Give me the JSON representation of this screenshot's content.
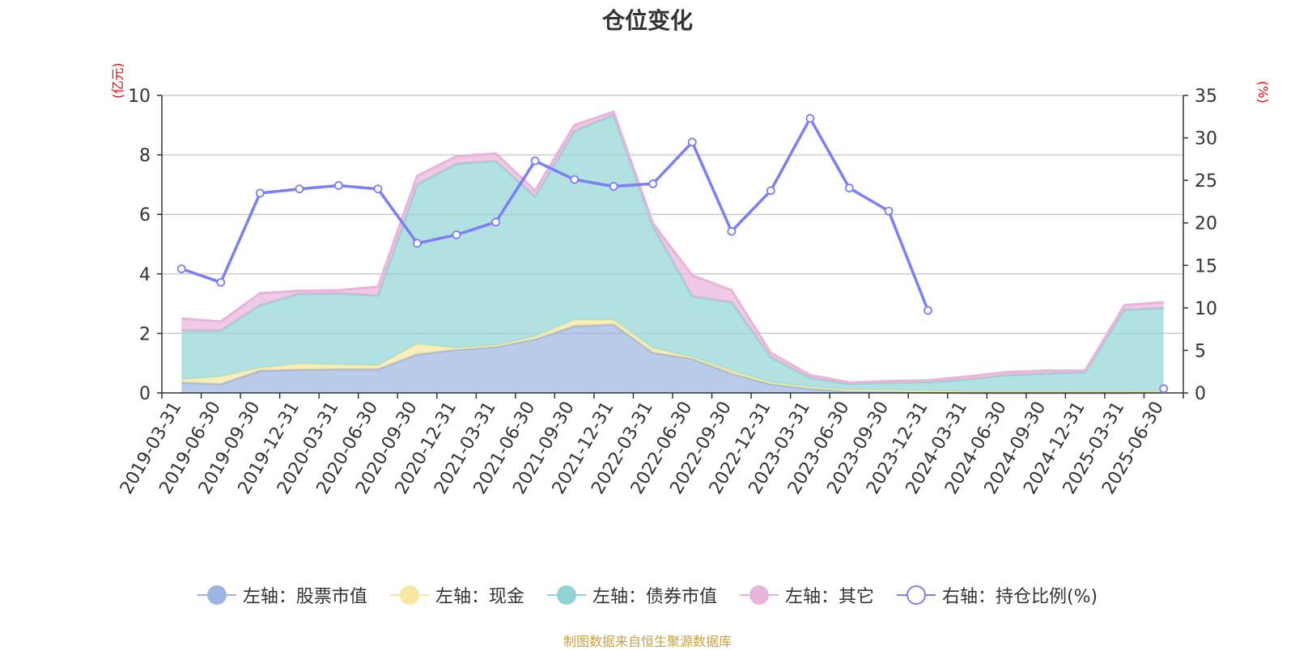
{
  "title": "仓位变化",
  "left_unit": "(亿元)",
  "right_unit": "(%)",
  "source_note": "制图数据来自恒生聚源数据库",
  "legend": [
    {
      "label": "左轴：股票市值",
      "color": "#9db5e0",
      "type": "area"
    },
    {
      "label": "左轴：现金",
      "color": "#f7e7a3",
      "type": "area"
    },
    {
      "label": "左轴：债券市值",
      "color": "#92d4d4",
      "type": "area"
    },
    {
      "label": "左轴：其它",
      "color": "#e8b4dc",
      "type": "area"
    },
    {
      "label": "右轴：持仓比例(%)",
      "color": "#7b7ef5",
      "type": "line"
    }
  ],
  "chart_data": {
    "type": "area",
    "stacked": true,
    "title": "仓位变化",
    "x": [
      "2019-03-31",
      "2019-06-30",
      "2019-09-30",
      "2019-12-31",
      "2020-03-31",
      "2020-06-30",
      "2020-09-30",
      "2020-12-31",
      "2021-03-31",
      "2021-06-30",
      "2021-09-30",
      "2021-12-31",
      "2022-03-31",
      "2022-06-30",
      "2022-09-30",
      "2022-12-31",
      "2023-03-31",
      "2023-06-30",
      "2023-09-30",
      "2023-12-31",
      "2024-03-31",
      "2024-06-30",
      "2024-09-30",
      "2024-12-31",
      "2025-03-31",
      "2025-06-30"
    ],
    "left_axis": {
      "label": "(亿元)",
      "ylim": [
        0,
        10
      ],
      "ticks": [
        0,
        2,
        4,
        6,
        8,
        10
      ]
    },
    "right_axis": {
      "label": "(%)",
      "ylim": [
        0,
        35
      ],
      "ticks": [
        0,
        5,
        10,
        15,
        20,
        25,
        30,
        35
      ]
    },
    "grid": true,
    "legend_position": "bottom",
    "series": [
      {
        "name": "左轴：股票市值",
        "axis": "left",
        "color": "#9db5e0",
        "values": [
          0.35,
          0.3,
          0.75,
          0.78,
          0.8,
          0.8,
          1.3,
          1.45,
          1.55,
          1.8,
          2.25,
          2.3,
          1.35,
          1.15,
          0.65,
          0.3,
          0.15,
          0.05,
          0.04,
          0.02,
          0,
          0,
          0,
          0,
          0,
          0.02
        ]
      },
      {
        "name": "左轴：现金",
        "axis": "left",
        "color": "#f7e7a3",
        "values": [
          0.1,
          0.25,
          0.1,
          0.2,
          0.15,
          0.12,
          0.35,
          0.05,
          0.05,
          0.1,
          0.2,
          0.15,
          0.15,
          0.05,
          0.1,
          0.05,
          0.05,
          0.05,
          0.06,
          0.05,
          0.05,
          0.05,
          0.05,
          0.05,
          0.05,
          0.03
        ]
      },
      {
        "name": "左轴：债券市值",
        "axis": "left",
        "color": "#92d4d4",
        "values": [
          1.65,
          1.55,
          2.1,
          2.35,
          2.4,
          2.35,
          5.35,
          6.2,
          6.2,
          4.7,
          6.35,
          6.9,
          4.1,
          2.05,
          2.3,
          0.85,
          0.3,
          0.2,
          0.25,
          0.3,
          0.4,
          0.55,
          0.6,
          0.65,
          2.75,
          2.8
        ]
      },
      {
        "name": "左轴：其它",
        "axis": "left",
        "color": "#e8b4dc",
        "values": [
          0.4,
          0.3,
          0.4,
          0.1,
          0.1,
          0.3,
          0.3,
          0.25,
          0.25,
          0.2,
          0.2,
          0.1,
          0.1,
          0.7,
          0.4,
          0.15,
          0.1,
          0.05,
          0.05,
          0.05,
          0.1,
          0.1,
          0.1,
          0.05,
          0.15,
          0.2
        ]
      },
      {
        "name": "右轴：持仓比例(%)",
        "axis": "right",
        "type": "line",
        "color": "#7b7ef5",
        "values": [
          14.6,
          13.0,
          23.5,
          24.0,
          24.4,
          24.0,
          17.6,
          18.6,
          20.1,
          27.3,
          25.1,
          24.3,
          24.6,
          29.5,
          19.0,
          23.8,
          32.3,
          24.1,
          21.4,
          9.7,
          null,
          null,
          null,
          null,
          null,
          0.5
        ]
      }
    ]
  }
}
